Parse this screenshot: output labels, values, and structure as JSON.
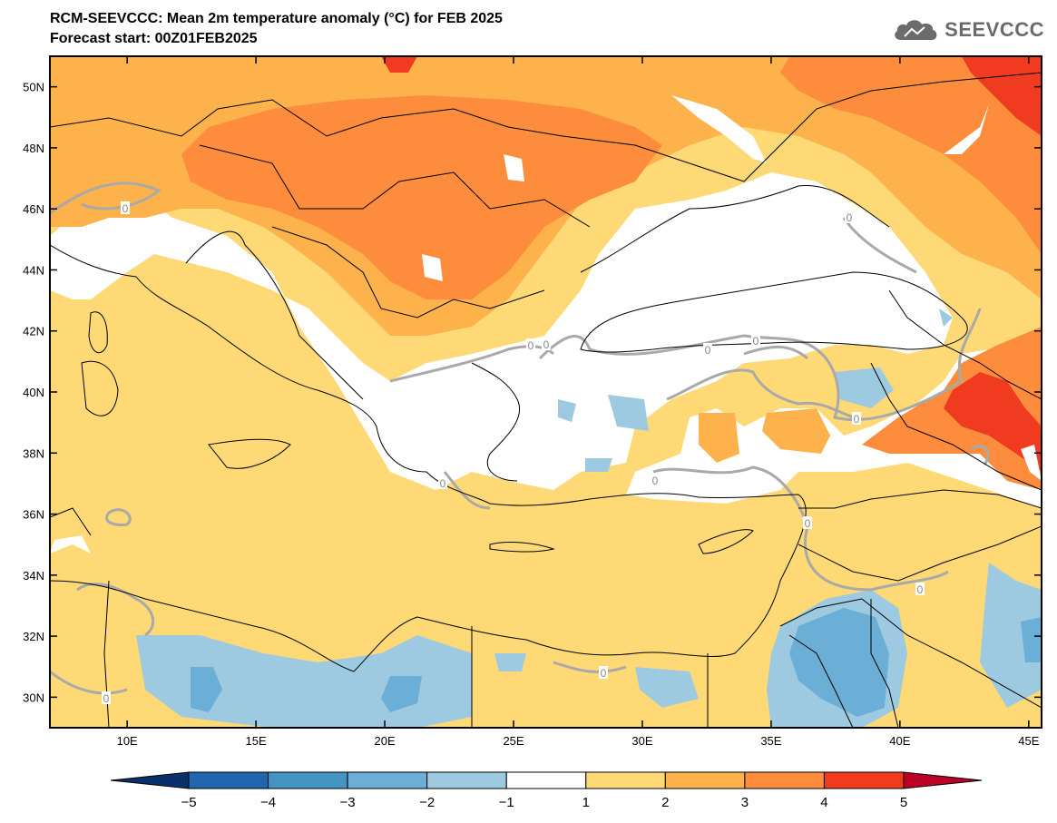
{
  "header": {
    "title_line1": "RCM-SEEVCCC: Mean 2m temperature anomaly (°C) for FEB 2025",
    "title_line2": "Forecast start: 00Z01FEB2025"
  },
  "logo": {
    "text": "SEEVCCC",
    "icon": "cloud-icon",
    "color": "#6b6b6b"
  },
  "map": {
    "lon_range": [
      7,
      45.5
    ],
    "lat_range": [
      29,
      51
    ],
    "lat_ticks": [
      {
        "value": 50,
        "label": "50N"
      },
      {
        "value": 48,
        "label": "48N"
      },
      {
        "value": 46,
        "label": "46N"
      },
      {
        "value": 44,
        "label": "44N"
      },
      {
        "value": 42,
        "label": "42N"
      },
      {
        "value": 40,
        "label": "40N"
      },
      {
        "value": 38,
        "label": "38N"
      },
      {
        "value": 36,
        "label": "36N"
      },
      {
        "value": 34,
        "label": "34N"
      },
      {
        "value": 32,
        "label": "32N"
      },
      {
        "value": 30,
        "label": "30N"
      }
    ],
    "lon_ticks": [
      {
        "value": 10,
        "label": "10E"
      },
      {
        "value": 15,
        "label": "15E"
      },
      {
        "value": 20,
        "label": "20E"
      },
      {
        "value": 25,
        "label": "25E"
      },
      {
        "value": 30,
        "label": "30E"
      },
      {
        "value": 35,
        "label": "35E"
      },
      {
        "value": 40,
        "label": "40E"
      },
      {
        "value": 45,
        "label": "45E"
      }
    ],
    "contour_labels": [
      "0",
      "0",
      "0",
      "0",
      "0",
      "0",
      "0",
      "0",
      "0",
      "0",
      "0",
      "0",
      "0"
    ]
  },
  "colorbar": {
    "levels": [
      "−5",
      "−4",
      "−3",
      "−2",
      "−1",
      "1",
      "2",
      "3",
      "4",
      "5"
    ],
    "colors": [
      "#08306b",
      "#2166ac",
      "#4393c3",
      "#6baed6",
      "#9ecae1",
      "#ffffff",
      "#fed976",
      "#feb24c",
      "#fd8d3c",
      "#f03b20",
      "#bd0026"
    ]
  }
}
